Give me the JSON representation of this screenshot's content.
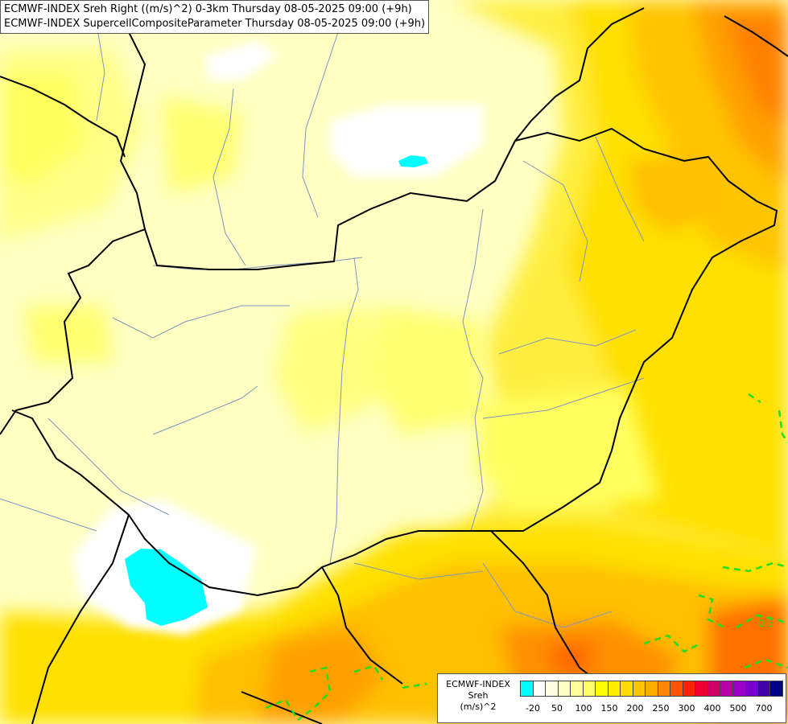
{
  "title": {
    "line1": "ECMWF-INDEX Sreh Right ((m/s)^2) 0-3km Thursday 08-05-2025 09:00 (+9h)",
    "line2": "ECMWF-INDEX SupercellCompositeParameter Thursday 08-05-2025 09:00 (+9h)"
  },
  "legend": {
    "line1": "ECMWF-INDEX",
    "line2": "Sreh",
    "line3": "(m/s)^2",
    "colors": [
      "#00ffff",
      "#ffffff",
      "#ffffe0",
      "#ffffc0",
      "#ffff99",
      "#ffff66",
      "#ffff00",
      "#ffee00",
      "#ffdd00",
      "#ffc400",
      "#ffaa00",
      "#ff8800",
      "#ff5500",
      "#ff2200",
      "#ee0033",
      "#cc0066",
      "#bb00aa",
      "#9900cc",
      "#7700cc",
      "#4400aa",
      "#000088"
    ],
    "ticks": [
      "-20",
      "50",
      "100",
      "150",
      "200",
      "250",
      "300",
      "400",
      "500",
      "700"
    ]
  },
  "overlay": {
    "scp_label": "0.5",
    "scp_color": "#22dd22"
  }
}
